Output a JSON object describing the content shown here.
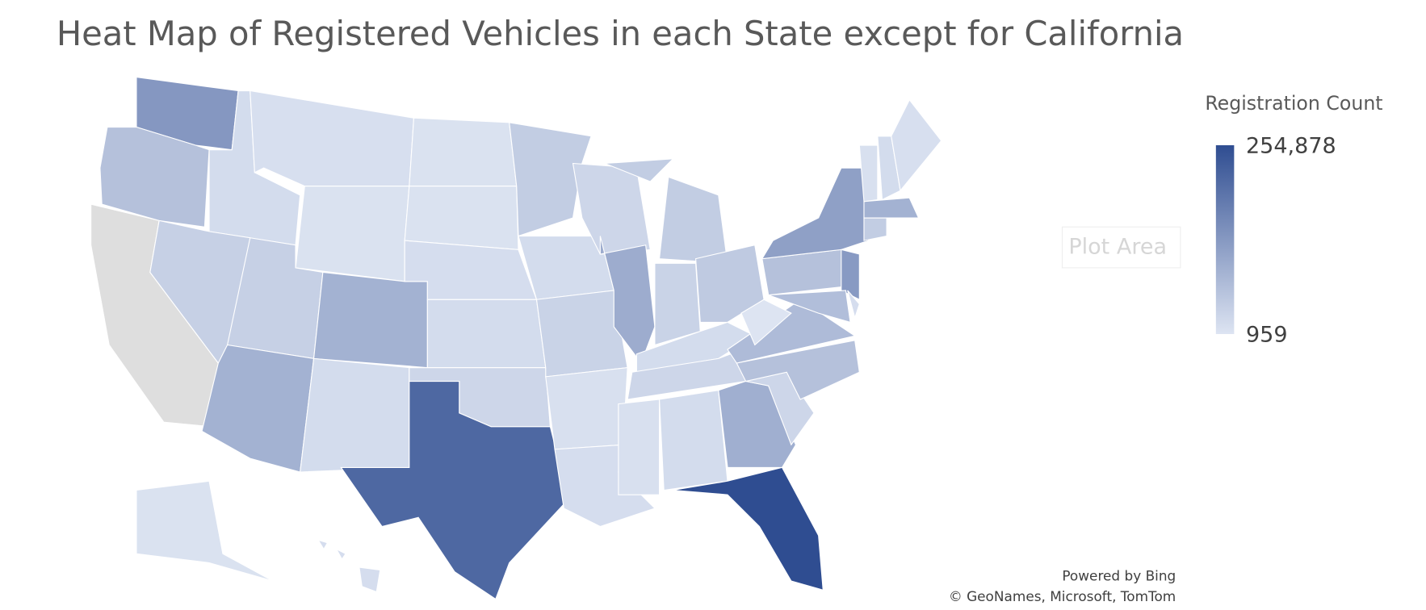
{
  "chart_data": {
    "type": "choropleth",
    "title": "Heat Map of Registered Vehicles in each State except for California",
    "values": [
      130000,
      60000,
      15000,
      35000,
      10000,
      5000,
      35000,
      85000,
      85000,
      15000,
      5000,
      5000,
      12000,
      15000,
      25000,
      210000,
      40000,
      15000,
      30000,
      8000,
      12000,
      25000,
      95000,
      40000,
      30000,
      45000,
      15000,
      25000,
      8000,
      15000,
      90000,
      254878,
      25000,
      60000,
      70000,
      959,
      60000,
      115000,
      125000,
      65000,
      12000,
      40000,
      85000,
      8000,
      15000,
      10000,
      5000,
      12000
    ],
    "legend": {
      "title": "Registration Count",
      "max": {
        "value": 254878,
        "label": "254,878"
      },
      "min": 959,
      "min_color": "#dde4f2",
      "max_color": "#2f4d91"
    },
    "plot_area_label": "Plot Area",
    "credits": [
      "Powered by Bing",
      "© GeoNames, Microsoft, TomTom"
    ]
  }
}
